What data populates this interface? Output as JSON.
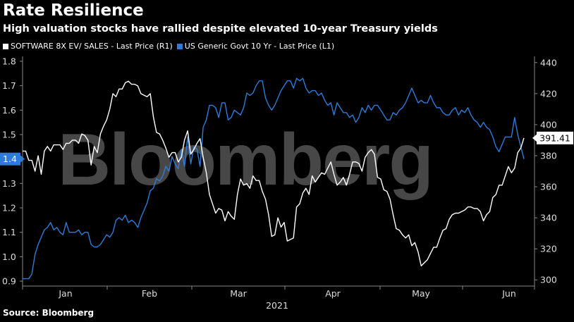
{
  "header": {
    "title": "Rate Resilience",
    "subtitle": "High valuation stocks have rallied despite elevated 10-year Treasury yields"
  },
  "footer": {
    "source": "Source: Bloomberg"
  },
  "watermark": "Bloomberg",
  "colors": {
    "software": "#ffffff",
    "treasury": "#2e7bd8",
    "background": "#000000",
    "axis": "#888888"
  },
  "chart_data": {
    "type": "line",
    "title": "Rate Resilience",
    "subtitle": "High valuation stocks have rallied despite elevated 10-year Treasury yields",
    "x_axis": {
      "labels": [
        "Jan",
        "Feb",
        "Mar",
        "Apr",
        "May",
        "Jun"
      ],
      "year_label": "2021"
    },
    "left_axis": {
      "range": [
        0.88,
        1.82
      ],
      "ticks": [
        0.9,
        1.0,
        1.1,
        1.2,
        1.3,
        1.4,
        1.5,
        1.6,
        1.7,
        1.8
      ]
    },
    "right_axis": {
      "range": [
        296,
        444
      ],
      "ticks": [
        300,
        320,
        340,
        360,
        380,
        400,
        420,
        440
      ]
    },
    "series": [
      {
        "name": "SOFTWARE 8X EV/ SALES - Last Price (R1)",
        "axis": "right",
        "color": "#ffffff",
        "last_value_label": "391.41",
        "values": [
          383,
          383,
          377,
          377,
          370,
          380,
          368,
          383,
          386,
          383,
          387,
          387,
          387,
          384,
          388,
          388,
          390,
          390,
          388,
          394,
          393,
          390,
          374,
          386,
          382,
          394,
          399,
          403,
          410,
          420,
          418,
          423,
          423,
          427,
          428,
          426,
          426,
          425,
          420,
          419,
          418,
          420,
          405,
          395,
          394,
          390,
          385,
          379,
          382,
          382,
          376,
          379,
          390,
          396,
          381,
          384,
          388,
          391,
          379,
          369,
          355,
          349,
          343,
          346,
          345,
          338,
          344,
          341,
          339,
          355,
          365,
          361,
          362,
          359,
          367,
          364,
          364,
          357,
          352,
          342,
          328,
          329,
          340,
          334,
          337,
          325,
          326,
          327,
          347,
          349,
          356,
          359,
          355,
          367,
          363,
          366,
          369,
          368,
          372,
          376,
          368,
          361,
          363,
          366,
          361,
          368,
          376,
          376,
          375,
          370,
          379,
          382,
          384,
          381,
          366,
          365,
          358,
          357,
          352,
          342,
          333,
          332,
          329,
          327,
          329,
          322,
          324,
          318,
          309,
          311,
          313,
          317,
          321,
          321,
          327,
          332,
          333,
          339,
          342,
          343,
          343,
          344,
          345,
          347,
          347,
          346,
          346,
          344,
          338,
          342,
          344,
          353,
          355,
          361,
          361,
          367,
          373,
          369,
          372,
          382,
          385,
          391.41
        ]
      },
      {
        "name": "US Generic Govt 10 Yr - Last Price (L1)",
        "axis": "left",
        "color": "#2e7bd8",
        "last_value_label": "1.4",
        "values": [
          0.91,
          0.91,
          0.91,
          0.93,
          1.01,
          1.05,
          1.08,
          1.11,
          1.12,
          1.14,
          1.11,
          1.12,
          1.1,
          1.09,
          1.14,
          1.1,
          1.1,
          1.1,
          1.11,
          1.09,
          1.1,
          1.1,
          1.05,
          1.04,
          1.04,
          1.05,
          1.07,
          1.09,
          1.08,
          1.1,
          1.15,
          1.16,
          1.15,
          1.17,
          1.14,
          1.15,
          1.14,
          1.12,
          1.16,
          1.19,
          1.22,
          1.27,
          1.28,
          1.32,
          1.31,
          1.33,
          1.37,
          1.35,
          1.41,
          1.38,
          1.36,
          1.44,
          1.37,
          1.49,
          1.38,
          1.45,
          1.44,
          1.37,
          1.53,
          1.56,
          1.62,
          1.62,
          1.61,
          1.57,
          1.63,
          1.63,
          1.56,
          1.57,
          1.6,
          1.59,
          1.58,
          1.61,
          1.67,
          1.66,
          1.67,
          1.7,
          1.72,
          1.72,
          1.65,
          1.62,
          1.6,
          1.62,
          1.65,
          1.68,
          1.7,
          1.72,
          1.72,
          1.69,
          1.73,
          1.72,
          1.73,
          1.69,
          1.67,
          1.68,
          1.68,
          1.66,
          1.67,
          1.64,
          1.62,
          1.63,
          1.58,
          1.63,
          1.61,
          1.59,
          1.59,
          1.57,
          1.58,
          1.55,
          1.57,
          1.61,
          1.59,
          1.62,
          1.6,
          1.62,
          1.62,
          1.6,
          1.58,
          1.56,
          1.56,
          1.59,
          1.58,
          1.6,
          1.61,
          1.63,
          1.66,
          1.69,
          1.66,
          1.63,
          1.64,
          1.63,
          1.63,
          1.66,
          1.63,
          1.61,
          1.61,
          1.59,
          1.58,
          1.58,
          1.6,
          1.61,
          1.58,
          1.6,
          1.59,
          1.61,
          1.58,
          1.56,
          1.55,
          1.53,
          1.55,
          1.53,
          1.52,
          1.49,
          1.45,
          1.43,
          1.46,
          1.49,
          1.49,
          1.49,
          1.57,
          1.5,
          1.45,
          1.4
        ]
      }
    ],
    "grid": false,
    "legend_position": "top-left"
  }
}
